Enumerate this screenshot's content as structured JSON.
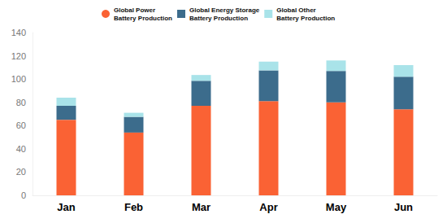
{
  "chart_data": {
    "type": "bar",
    "stacked": true,
    "grid": false,
    "legend": "top",
    "categories": [
      "Jan",
      "Feb",
      "Mar",
      "Apr",
      "May",
      "Jun"
    ],
    "series": [
      {
        "name": "Global Power\nBattery Production",
        "color": "#fa6234",
        "values": [
          65,
          54,
          77,
          81,
          80,
          74
        ]
      },
      {
        "name": "Global Energy Storage\nBattery Production",
        "color": "#3c6c8c",
        "values": [
          12,
          13.5,
          21.5,
          26.5,
          27,
          28
        ]
      },
      {
        "name": "Global Other\nBattery Production",
        "color": "#a9e3e9",
        "values": [
          7,
          3.5,
          5,
          7.5,
          9,
          10
        ]
      }
    ],
    "ylim": [
      0,
      140
    ],
    "yticks": [
      0,
      20,
      40,
      60,
      80,
      100,
      120,
      140
    ]
  }
}
